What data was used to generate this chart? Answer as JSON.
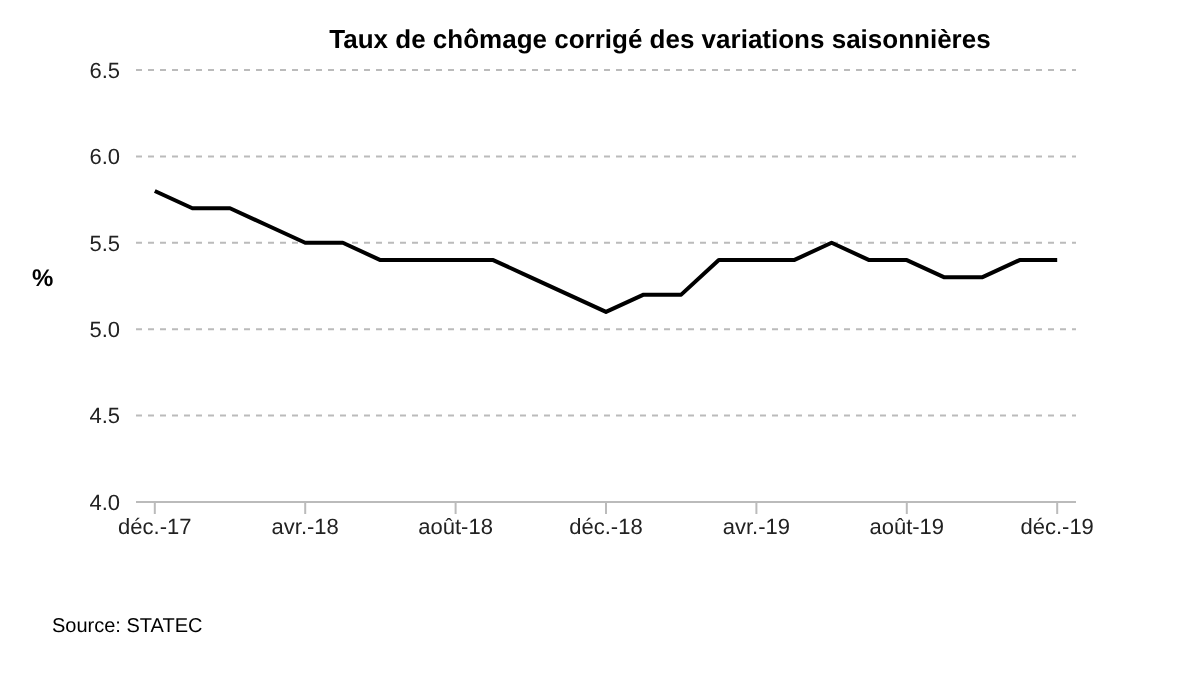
{
  "chart_data": {
    "type": "line",
    "title": "Taux de chômage corrigé des variations saisonnières",
    "ylabel": "%",
    "categories": [
      "déc.-17",
      null,
      null,
      null,
      "avr.-18",
      null,
      null,
      null,
      "août-18",
      null,
      null,
      null,
      "déc.-18",
      null,
      null,
      null,
      "avr.-19",
      null,
      null,
      null,
      "août-19",
      null,
      null,
      null,
      "déc.-19"
    ],
    "series": [
      {
        "color": "#000000",
        "values": [
          5.8,
          5.7,
          5.7,
          5.6,
          5.5,
          5.5,
          5.4,
          5.4,
          5.4,
          5.4,
          5.3,
          5.2,
          5.1,
          5.2,
          5.2,
          5.4,
          5.4,
          5.4,
          5.5,
          5.4,
          5.4,
          5.3,
          5.3,
          5.4,
          5.4
        ]
      }
    ],
    "ylim": [
      4.0,
      6.5
    ],
    "yticks": [
      {
        "value": 4.0,
        "label": "4.0"
      },
      {
        "value": 4.5,
        "label": "4.5"
      },
      {
        "value": 5.0,
        "label": "5.0"
      },
      {
        "value": 5.5,
        "label": "5.5"
      },
      {
        "value": 6.0,
        "label": "6.0"
      },
      {
        "value": 6.5,
        "label": "6.5"
      }
    ],
    "grid": "y",
    "legend": false,
    "marker": "none",
    "line_style": "solid",
    "annotations": [
      "Source: STATEC"
    ]
  }
}
